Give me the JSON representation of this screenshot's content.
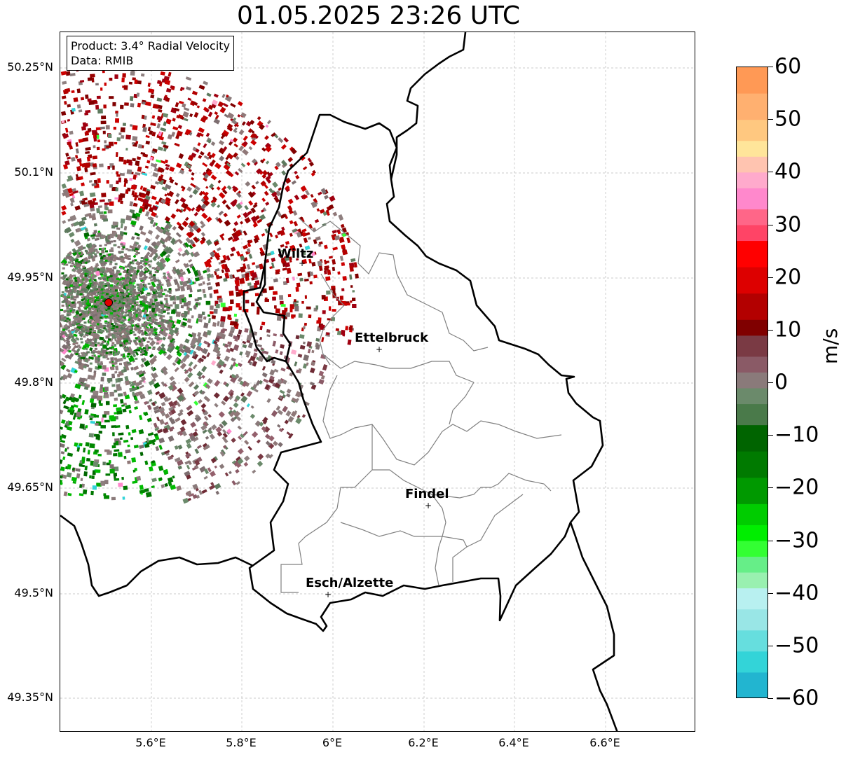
{
  "title": "01.05.2025 23:26 UTC",
  "info": {
    "product": "Product: 3.4° Radial Velocity",
    "data": "Data: RMIB"
  },
  "lat_ticks": [
    "50.25°N",
    "50.1°N",
    "49.95°N",
    "49.8°N",
    "49.65°N",
    "49.5°N",
    "49.35°N"
  ],
  "lon_ticks": [
    "5.6°E",
    "5.8°E",
    "6°E",
    "6.2°E",
    "6.4°E",
    "6.6°E"
  ],
  "cities": [
    {
      "name": "Wiltz"
    },
    {
      "name": "Ettelbruck"
    },
    {
      "name": "Findel"
    },
    {
      "name": "Esch/Alzette"
    }
  ],
  "colorbar": {
    "label": "m/s",
    "ticks": [
      "60",
      "50",
      "40",
      "30",
      "20",
      "10",
      "0",
      "−10",
      "−20",
      "−30",
      "−40",
      "−50",
      "−60"
    ],
    "min": -60,
    "max": 60
  },
  "colors": {
    "radar_site": "#e00000",
    "border": "#000000",
    "canton": "#808080",
    "grid": "#bbbbbb"
  }
}
